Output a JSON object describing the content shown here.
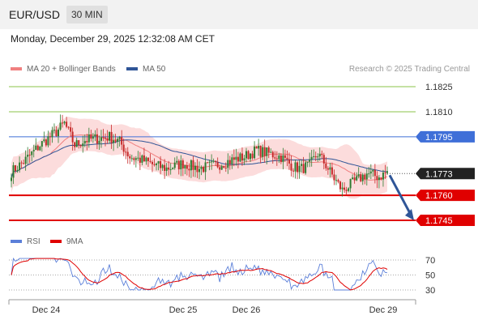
{
  "header": {
    "symbol": "EUR/USD",
    "timeframe": "30 MIN"
  },
  "datetime": "Monday, December 29, 2025 12:32:08 AM CET",
  "legend": {
    "ma20_label": "MA 20 + Bollinger Bands",
    "ma50_label": "MA 50",
    "credit": "Research © 2025 Trading Central"
  },
  "rsi_legend": {
    "rsi_label": "RSI",
    "ma_label": "9MA"
  },
  "colors": {
    "up": "#2e7d32",
    "down": "#c62828",
    "band": "#fbd3d3",
    "ma20": "#f08080",
    "ma50": "#2f5597",
    "resistance": "#8bc34a",
    "resistance_blue": "#3f6fd8",
    "support": "#e00000",
    "current": "#222222",
    "rsi": "#5b7fd9",
    "rsi_ma": "#e00000",
    "arrow": "#2f5597"
  },
  "chart_data": [
    {
      "type": "candlestick",
      "x_ticks": [
        "Dec 24",
        "Dec 25",
        "Dec 26",
        "Dec 29"
      ],
      "ylim": [
        1.1738,
        1.183
      ],
      "levels": [
        {
          "value": 1.1825,
          "label": "1.1825",
          "kind": "resistance"
        },
        {
          "value": 1.181,
          "label": "1.1810",
          "kind": "resistance"
        },
        {
          "value": 1.1795,
          "label": "1.1795",
          "kind": "resistance_blue"
        },
        {
          "value": 1.1773,
          "label": "1.1773",
          "kind": "current"
        },
        {
          "value": 1.176,
          "label": "1.1760",
          "kind": "support"
        },
        {
          "value": 1.1745,
          "label": "1.1745",
          "kind": "support"
        }
      ],
      "projection": {
        "from": 1.1772,
        "to": 1.1745
      }
    },
    {
      "type": "line",
      "name": "RSI",
      "ylim": [
        25,
        75
      ],
      "y_ticks": [
        {
          "value": 70,
          "label": "70"
        },
        {
          "value": 50,
          "label": "50"
        },
        {
          "value": 30,
          "label": "30"
        }
      ]
    }
  ]
}
